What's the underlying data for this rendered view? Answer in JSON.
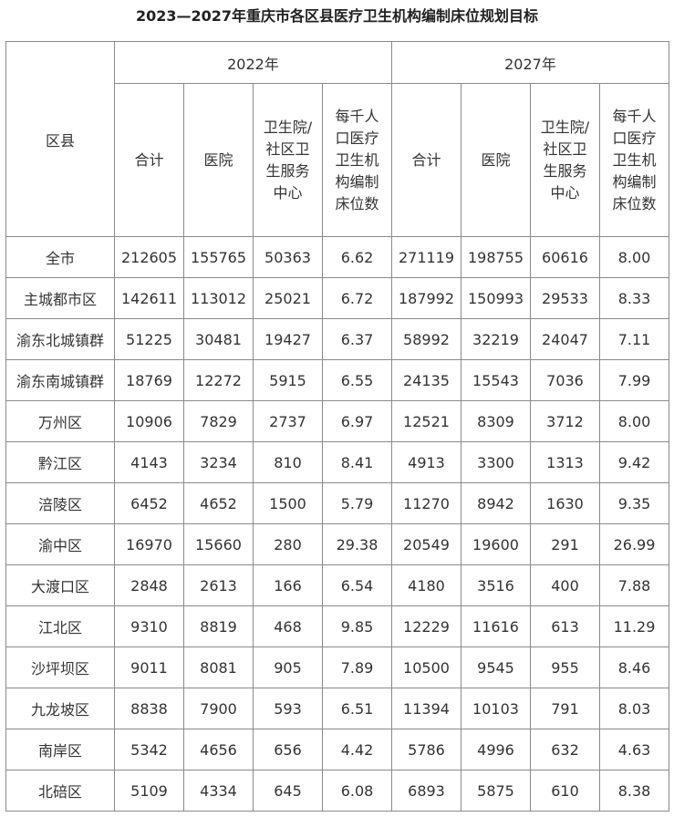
{
  "title": "2023—2027年重庆市各区县医疗卫生机构编制床位规划目标",
  "header": {
    "district_label": "区县",
    "year_2022": "2022年",
    "year_2027": "2027年",
    "col_total": "合计",
    "col_hospital": "医院",
    "col_health_center": [
      "卫生院/",
      "社区卫",
      "生服务",
      "中心"
    ],
    "col_per_thousand": [
      "每千人",
      "口医疗",
      "卫生机",
      "构编制",
      "床位数"
    ]
  },
  "rows": [
    {
      "district": "全市",
      "v2022": [
        "212605",
        "155765",
        "50363",
        "6.62"
      ],
      "v2027": [
        "271119",
        "198755",
        "60616",
        "8.00"
      ]
    },
    {
      "district": "主城都市区",
      "v2022": [
        "142611",
        "113012",
        "25021",
        "6.72"
      ],
      "v2027": [
        "187992",
        "150993",
        "29533",
        "8.33"
      ]
    },
    {
      "district": "渝东北城镇群",
      "v2022": [
        "51225",
        "30481",
        "19427",
        "6.37"
      ],
      "v2027": [
        "58992",
        "32219",
        "24047",
        "7.11"
      ]
    },
    {
      "district": "渝东南城镇群",
      "v2022": [
        "18769",
        "12272",
        "5915",
        "6.55"
      ],
      "v2027": [
        "24135",
        "15543",
        "7036",
        "7.99"
      ]
    },
    {
      "district": "万州区",
      "v2022": [
        "10906",
        "7829",
        "2737",
        "6.97"
      ],
      "v2027": [
        "12521",
        "8309",
        "3712",
        "8.00"
      ]
    },
    {
      "district": "黔江区",
      "v2022": [
        "4143",
        "3234",
        "810",
        "8.41"
      ],
      "v2027": [
        "4913",
        "3300",
        "1313",
        "9.42"
      ]
    },
    {
      "district": "涪陵区",
      "v2022": [
        "6452",
        "4652",
        "1500",
        "5.79"
      ],
      "v2027": [
        "11270",
        "8942",
        "1630",
        "9.35"
      ]
    },
    {
      "district": "渝中区",
      "v2022": [
        "16970",
        "15660",
        "280",
        "29.38"
      ],
      "v2027": [
        "20549",
        "19600",
        "291",
        "26.99"
      ]
    },
    {
      "district": "大渡口区",
      "v2022": [
        "2848",
        "2613",
        "166",
        "6.54"
      ],
      "v2027": [
        "4180",
        "3516",
        "400",
        "7.88"
      ]
    },
    {
      "district": "江北区",
      "v2022": [
        "9310",
        "8819",
        "468",
        "9.85"
      ],
      "v2027": [
        "12229",
        "11616",
        "613",
        "11.29"
      ]
    },
    {
      "district": "沙坪坝区",
      "v2022": [
        "9011",
        "8081",
        "905",
        "7.89"
      ],
      "v2027": [
        "10500",
        "9545",
        "955",
        "8.46"
      ]
    },
    {
      "district": "九龙坡区",
      "v2022": [
        "8838",
        "7900",
        "593",
        "6.51"
      ],
      "v2027": [
        "11394",
        "10103",
        "791",
        "8.03"
      ]
    },
    {
      "district": "南岸区",
      "v2022": [
        "5342",
        "4656",
        "656",
        "4.42"
      ],
      "v2027": [
        "5786",
        "4996",
        "632",
        "4.63"
      ]
    },
    {
      "district": "北碚区",
      "v2022": [
        "5109",
        "4334",
        "645",
        "6.08"
      ],
      "v2027": [
        "6893",
        "5875",
        "610",
        "8.38"
      ]
    }
  ]
}
